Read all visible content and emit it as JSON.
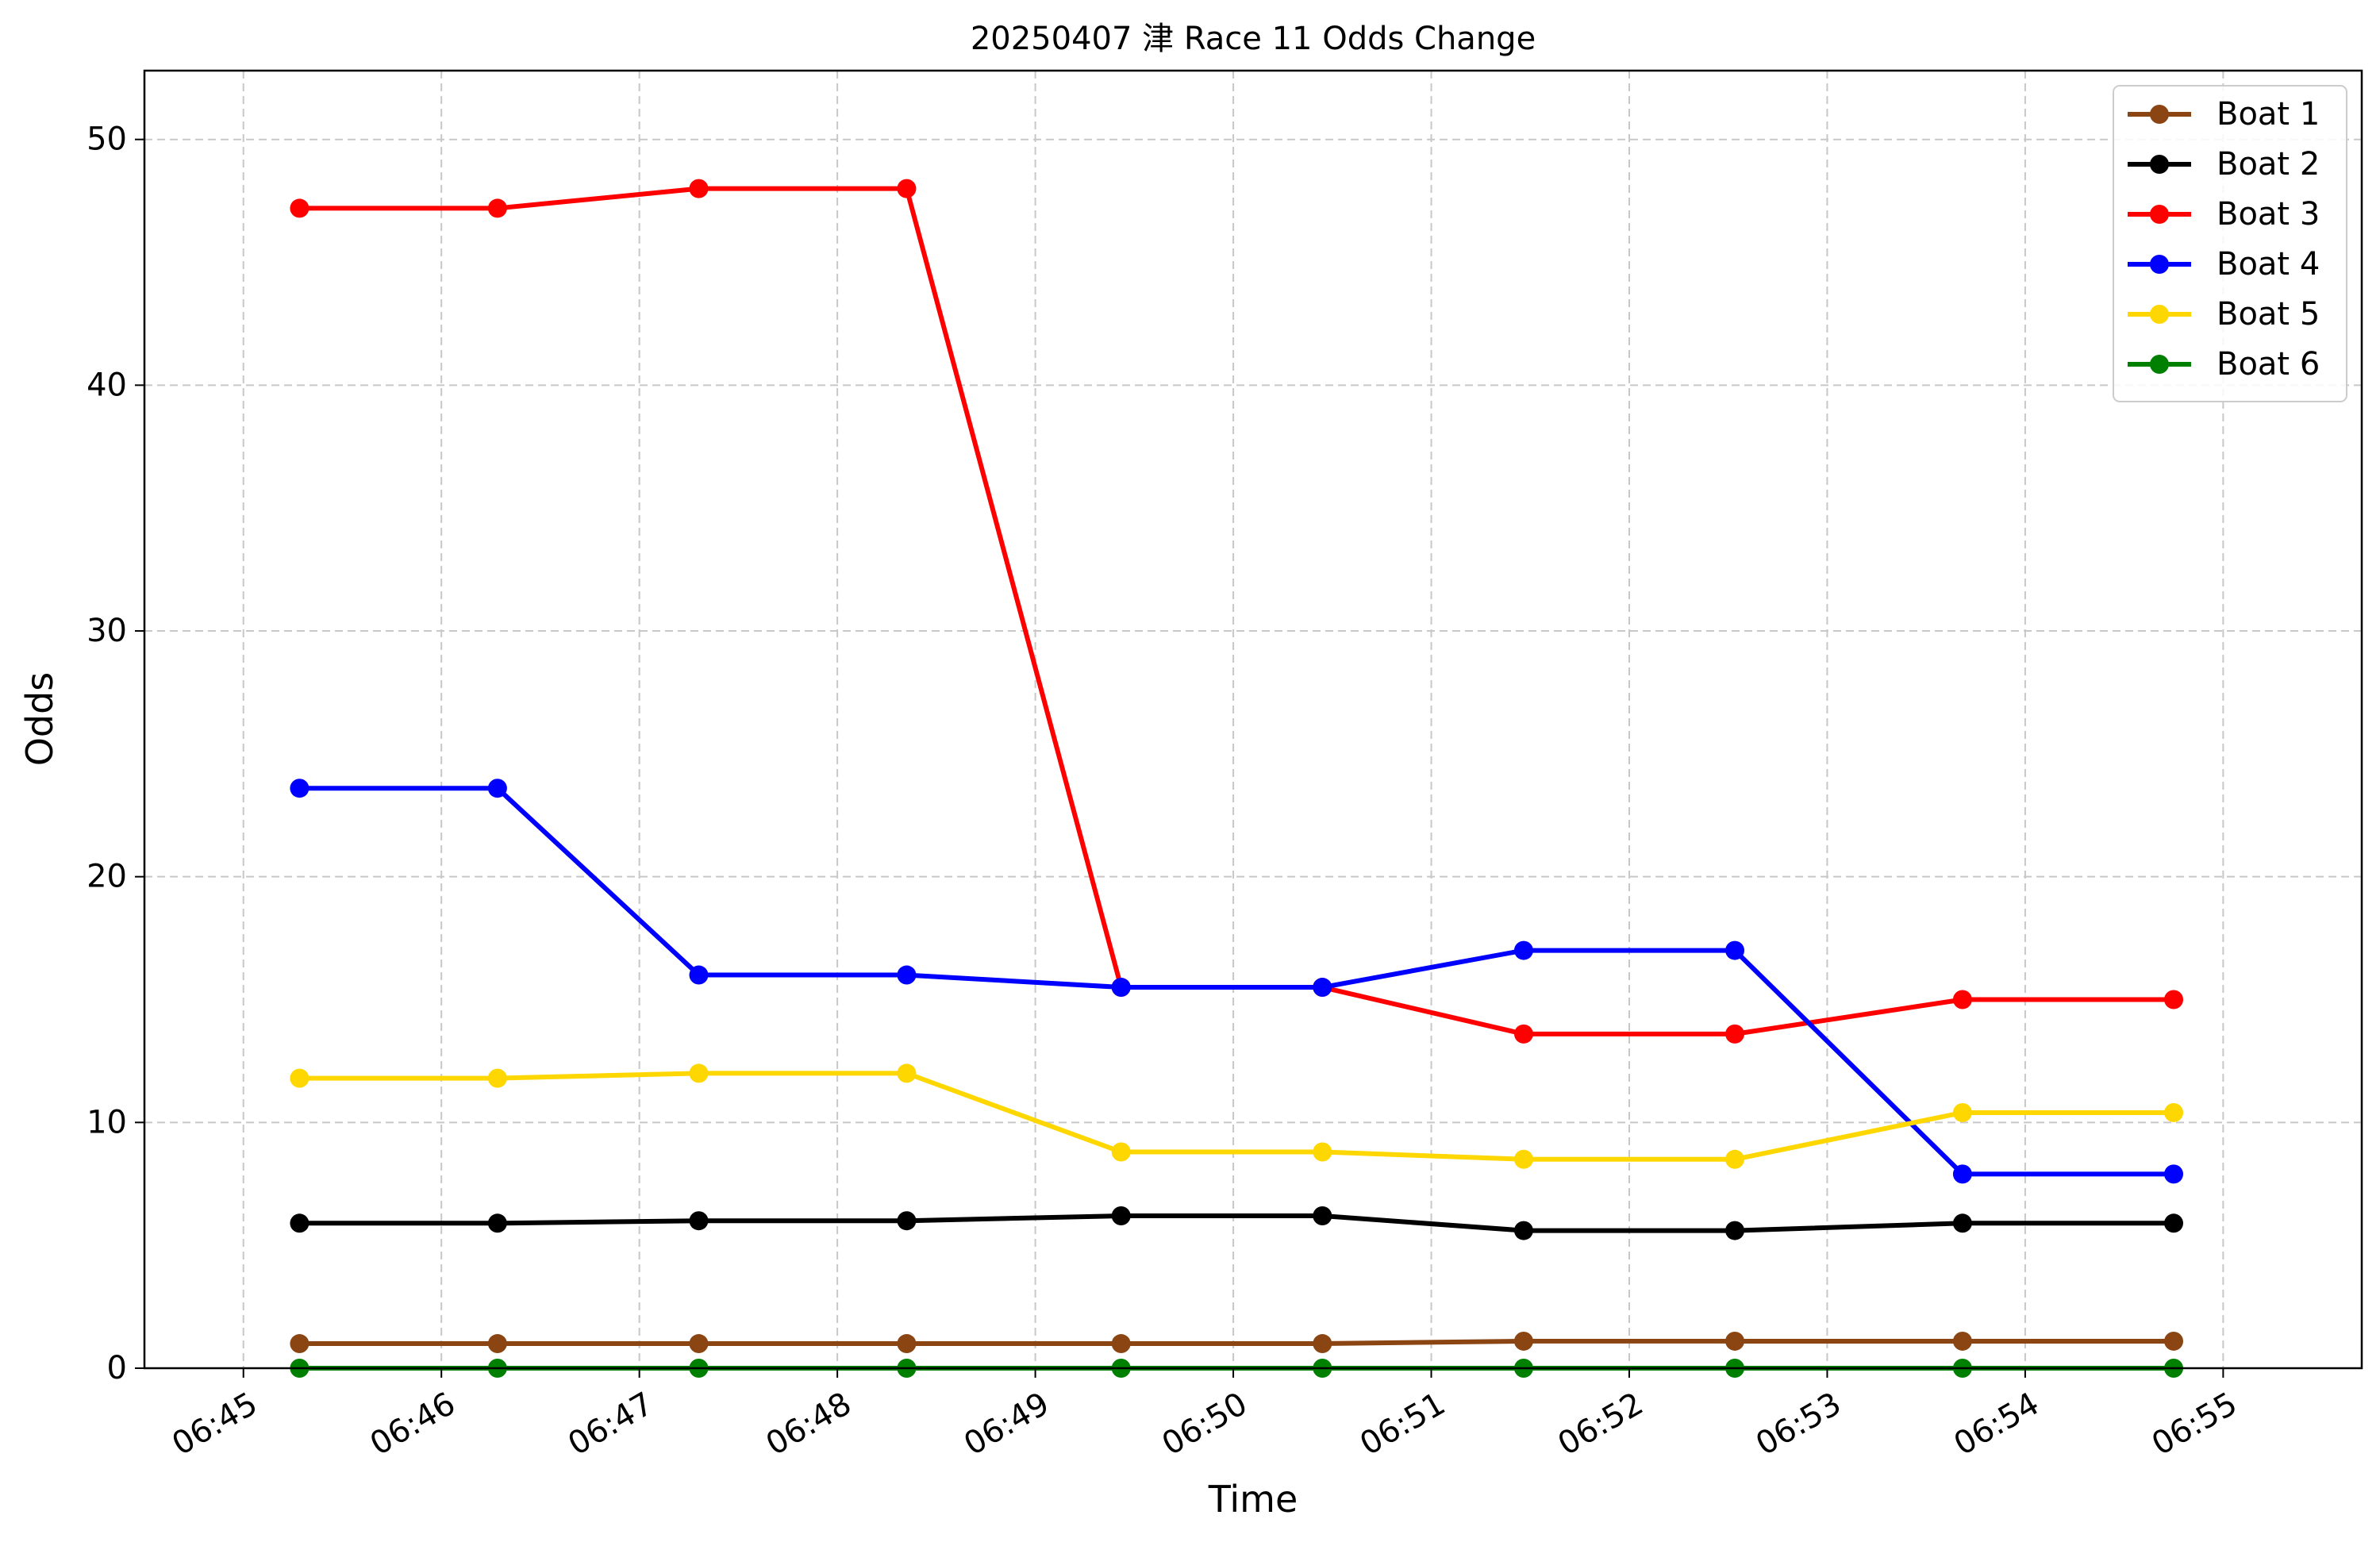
{
  "chart_data": {
    "type": "line",
    "title": "20250407 津 Race 11 Odds Change",
    "xlabel": "Time",
    "ylabel": "Odds",
    "x": [
      "06:45:17",
      "06:46:17",
      "06:47:18",
      "06:48:21",
      "06:49:26",
      "06:50:27",
      "06:51:28",
      "06:52:32",
      "06:53:41",
      "06:54:45"
    ],
    "xticks": [
      "06:45",
      "06:46",
      "06:47",
      "06:48",
      "06:49",
      "06:50",
      "06:51",
      "06:52",
      "06:53",
      "06:54",
      "06:55"
    ],
    "xlim": [
      "06:45",
      "06:55"
    ],
    "yticks": [
      0,
      10,
      20,
      30,
      40,
      50
    ],
    "ylim": [
      0,
      52.8
    ],
    "grid": true,
    "legend_position": "top-right",
    "series": [
      {
        "name": "Boat 1",
        "color": "#8B4513",
        "values": [
          1.0,
          1.0,
          1.0,
          1.0,
          1.0,
          1.0,
          1.1,
          1.1,
          1.1,
          1.1
        ]
      },
      {
        "name": "Boat 2",
        "color": "#000000",
        "values": [
          5.9,
          5.9,
          6.0,
          6.0,
          6.2,
          6.2,
          5.6,
          5.6,
          5.9,
          5.9
        ]
      },
      {
        "name": "Boat 3",
        "color": "#FF0000",
        "values": [
          47.2,
          47.2,
          48.0,
          48.0,
          15.5,
          15.5,
          13.6,
          13.6,
          15.0,
          15.0
        ]
      },
      {
        "name": "Boat 4",
        "color": "#0000FF",
        "values": [
          23.6,
          23.6,
          16.0,
          16.0,
          15.5,
          15.5,
          17.0,
          17.0,
          7.9,
          7.9
        ]
      },
      {
        "name": "Boat 5",
        "color": "#FFD700",
        "values": [
          11.8,
          11.8,
          12.0,
          12.0,
          8.8,
          8.8,
          8.5,
          8.5,
          10.4,
          10.4
        ]
      },
      {
        "name": "Boat 6",
        "color": "#008000",
        "values": [
          0.0,
          0.0,
          0.0,
          0.0,
          0.0,
          0.0,
          0.0,
          0.0,
          0.0,
          0.0
        ]
      }
    ]
  }
}
